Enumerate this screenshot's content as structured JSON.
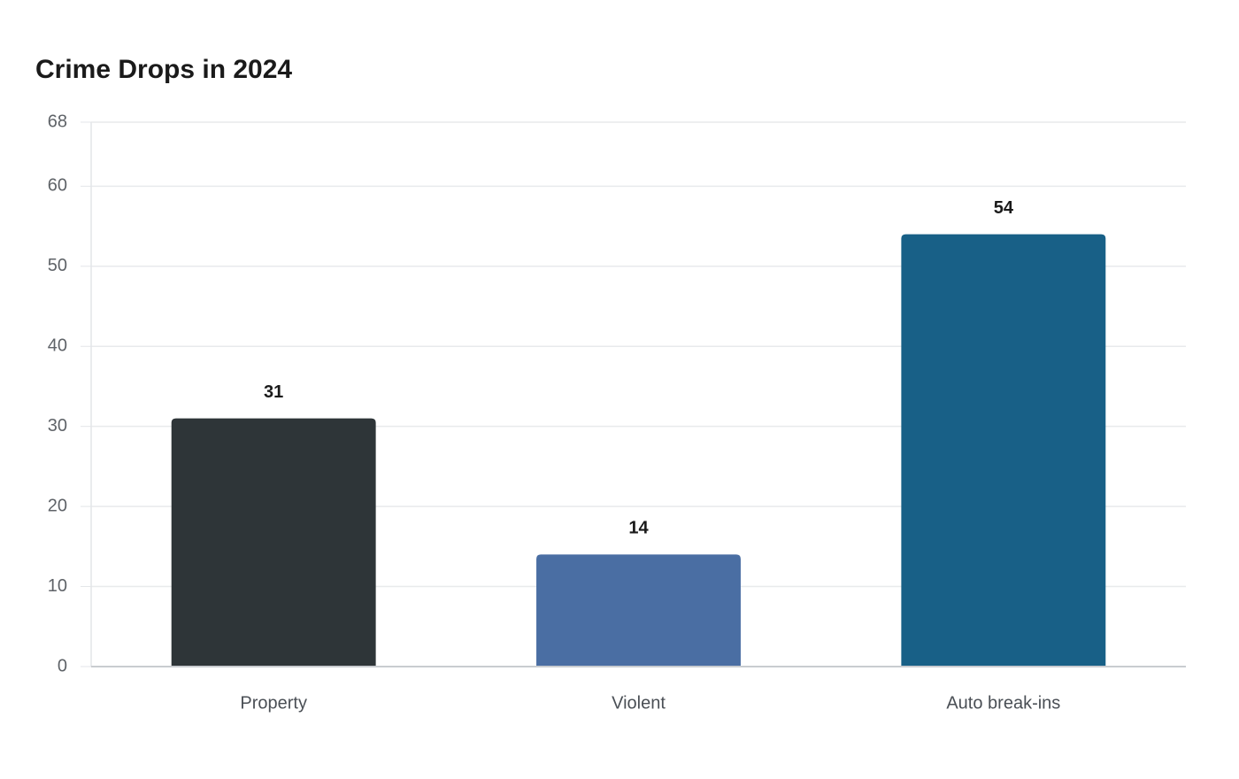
{
  "chart_data": {
    "type": "bar",
    "title": "Crime Drops in 2024",
    "categories": [
      "Property",
      "Violent",
      "Auto break-ins"
    ],
    "values": [
      31,
      14,
      54
    ],
    "colors": [
      "#2e3538",
      "#4a6ea3",
      "#186087"
    ],
    "ylim": [
      0,
      68
    ],
    "yticks": [
      0,
      10,
      20,
      30,
      40,
      50,
      60,
      68
    ],
    "grid": true
  }
}
